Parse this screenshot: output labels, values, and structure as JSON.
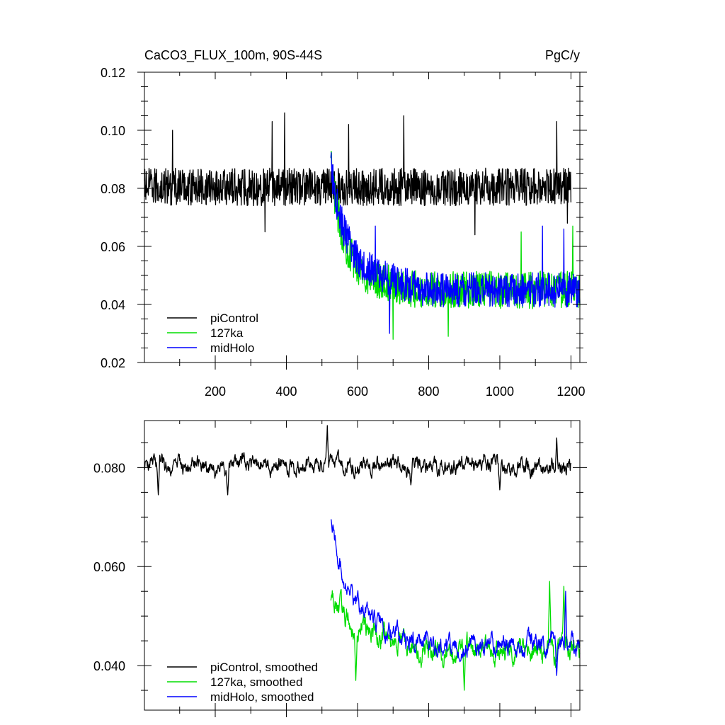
{
  "figure": {
    "title_left": "CaCO3_FLUX_100m, 90S-44S",
    "title_right": "PgC/y"
  },
  "chart_data": [
    {
      "type": "line",
      "title": "CaCO3_FLUX_100m, 90S-44S",
      "units": "PgC/y",
      "xlim": [
        1,
        1225
      ],
      "ylim": [
        0.02,
        0.12
      ],
      "x_ticks": [
        200,
        400,
        600,
        800,
        1000,
        1200
      ],
      "x_tick_labels": [
        "200",
        "400",
        "600",
        "800",
        "1000",
        "1200"
      ],
      "y_ticks": [
        0.02,
        0.04,
        0.06,
        0.08,
        0.1,
        0.12
      ],
      "y_tick_labels": [
        "0.02",
        "0.04",
        "0.06",
        "0.08",
        "0.10",
        "0.12"
      ],
      "grid": false,
      "legend_position": "bottom-left",
      "series": [
        {
          "name": "piControl",
          "color": "#000000",
          "x_start": 1,
          "x_end": 1200,
          "mean": 0.0805,
          "noise_amp": 0.0065,
          "spikes": [
            [
              80,
              0.1
            ],
            [
              360,
              0.103
            ],
            [
              395,
              0.106
            ],
            [
              575,
              0.102
            ],
            [
              730,
              0.105
            ],
            [
              1160,
              0.103
            ],
            [
              340,
              0.065
            ],
            [
              930,
              0.064
            ],
            [
              1190,
              0.068
            ]
          ]
        },
        {
          "name": "127ka",
          "color": "#00dd00",
          "x_start": 525,
          "x_end": 1225,
          "start_value": 0.088,
          "early_value": 0.05,
          "late_value": 0.045,
          "noise_amp": 0.0065,
          "spikes": [
            [
              700,
              0.028
            ],
            [
              855,
              0.029
            ],
            [
              1205,
              0.067
            ],
            [
              1060,
              0.065
            ]
          ]
        },
        {
          "name": "midHolo",
          "color": "#0000ff",
          "x_start": 525,
          "x_end": 1225,
          "start_value": 0.088,
          "early_value": 0.055,
          "late_value": 0.045,
          "noise_amp": 0.006,
          "spikes": [
            [
              650,
              0.067
            ],
            [
              1120,
              0.067
            ],
            [
              1180,
              0.066
            ],
            [
              690,
              0.03
            ]
          ]
        }
      ]
    },
    {
      "type": "line",
      "xlim": [
        1,
        1225
      ],
      "ylim": [
        0.031,
        0.0895
      ],
      "x_ticks": [
        200,
        400,
        600,
        800,
        1000,
        1200
      ],
      "x_tick_labels": [],
      "y_ticks": [
        0.04,
        0.06,
        0.08
      ],
      "y_tick_labels": [
        "0.040",
        "0.060",
        "0.080"
      ],
      "grid": false,
      "legend_position": "bottom-left",
      "series": [
        {
          "name": "piControl, smoothed",
          "color": "#000000",
          "x_start": 1,
          "x_end": 1200,
          "mean": 0.0805,
          "noise_amp": 0.0025,
          "spikes": [
            [
              40,
              0.0745
            ],
            [
              235,
              0.0745
            ],
            [
              515,
              0.0885
            ],
            [
              750,
              0.0765
            ],
            [
              1000,
              0.0755
            ],
            [
              1160,
              0.086
            ]
          ]
        },
        {
          "name": "127ka, smoothed",
          "color": "#00dd00",
          "x_start": 525,
          "x_end": 1225,
          "start_value": 0.0545,
          "early_value": 0.049,
          "late_value": 0.043,
          "noise_amp": 0.0035,
          "spikes": [
            [
              595,
              0.037
            ],
            [
              900,
              0.035
            ],
            [
              1140,
              0.057
            ],
            [
              1180,
              0.056
            ]
          ]
        },
        {
          "name": "midHolo, smoothed",
          "color": "#0000ff",
          "x_start": 525,
          "x_end": 1225,
          "start_value": 0.0705,
          "early_value": 0.052,
          "late_value": 0.044,
          "noise_amp": 0.003,
          "spikes": [
            [
              575,
              0.0555
            ],
            [
              1185,
              0.055
            ],
            [
              1160,
              0.038
            ]
          ]
        }
      ]
    }
  ]
}
